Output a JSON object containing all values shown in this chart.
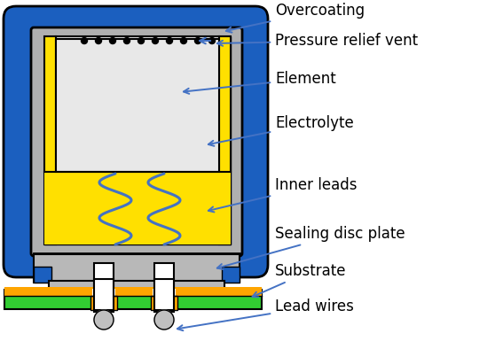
{
  "colors": {
    "blue": "#1B5FBF",
    "gray_can": "#B0B0B0",
    "gray_dark": "#909090",
    "yellow": "#FFE000",
    "white_element": "#E8E8E8",
    "green": "#32CD32",
    "orange": "#FFA500",
    "gray_seal": "#B8B8B8",
    "white": "#FFFFFF",
    "gray_ball": "#C0C0C0",
    "black": "#000000",
    "arrow": "#4472C4"
  },
  "labels": {
    "overcoating": "Overcoating",
    "pressure_relief_vent": "Pressure relief vent",
    "element": "Element",
    "electrolyte": "Electrolyte",
    "inner_leads": "Inner leads",
    "sealing_disc_plate": "Sealing disc plate",
    "substrate": "Substrate",
    "lead_wires": "Lead wires"
  },
  "font_size": 12
}
